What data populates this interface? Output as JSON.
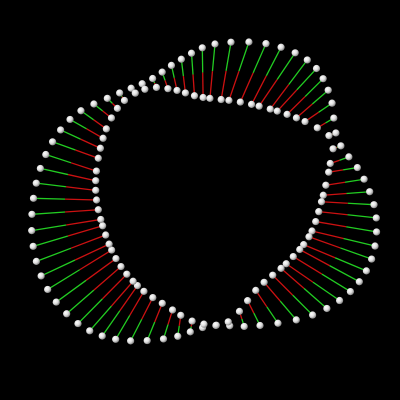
{
  "scene": {
    "background_color": "#000000",
    "rung_outer_color": "#22cc22",
    "rung_inner_color": "#cc1111",
    "bead_fill": "#e8e8e8",
    "bead_highlight": "#ffffff",
    "bead_shadow": "#8a8a8a"
  }
}
